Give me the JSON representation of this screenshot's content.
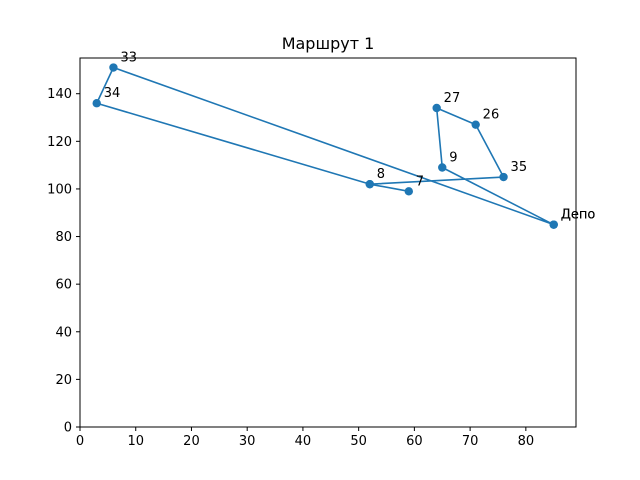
{
  "chart_data": {
    "type": "line",
    "title": "Маршрут 1",
    "xlabel": "",
    "ylabel": "",
    "xlim": [
      0,
      89
    ],
    "ylim": [
      0,
      155
    ],
    "x_ticks": [
      0,
      10,
      20,
      30,
      40,
      50,
      60,
      70,
      80
    ],
    "y_ticks": [
      0,
      20,
      40,
      60,
      80,
      100,
      120,
      140
    ],
    "grid": false,
    "series": [
      {
        "color": "#1f77b4",
        "marker": "circle",
        "points": [
          {
            "x": 85,
            "y": 85,
            "label": "Депо"
          },
          {
            "x": 65,
            "y": 109,
            "label": "9"
          },
          {
            "x": 64,
            "y": 134,
            "label": "27"
          },
          {
            "x": 71,
            "y": 127,
            "label": "26"
          },
          {
            "x": 76,
            "y": 105,
            "label": "35"
          },
          {
            "x": 52,
            "y": 102,
            "label": "8"
          },
          {
            "x": 59,
            "y": 99,
            "label": "7"
          },
          {
            "x": 52,
            "y": 102,
            "label": ""
          },
          {
            "x": 3,
            "y": 136,
            "label": "34"
          },
          {
            "x": 6,
            "y": 151,
            "label": "33"
          },
          {
            "x": 85,
            "y": 85,
            "label": "Депо"
          }
        ]
      }
    ]
  }
}
